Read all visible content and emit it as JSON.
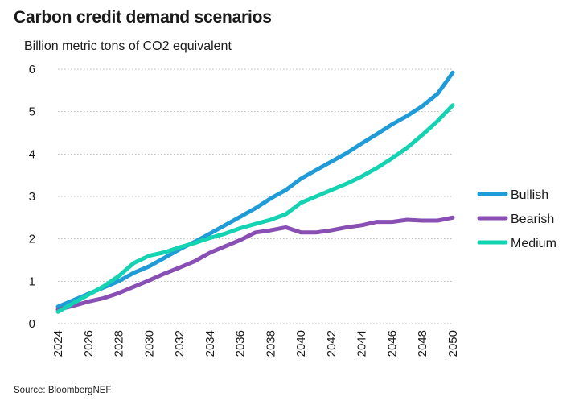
{
  "title": "Carbon credit demand scenarios",
  "subtitle": "Billion metric tons of CO2 equivalent",
  "source": "Source: BloombergNEF",
  "chart_data": {
    "type": "line",
    "title": "Carbon credit demand scenarios",
    "ylabel": "Billion metric tons of CO2 equivalent",
    "xlabel": "",
    "ylim": [
      0,
      6
    ],
    "xlim": [
      2024,
      2050
    ],
    "y_ticks": [
      0,
      1,
      2,
      3,
      4,
      5,
      6
    ],
    "x_ticks": [
      2024,
      2026,
      2028,
      2030,
      2032,
      2034,
      2036,
      2038,
      2040,
      2042,
      2044,
      2046,
      2048,
      2050
    ],
    "grid": "horizontal dotted",
    "legend_position": "right",
    "x": [
      2024,
      2025,
      2026,
      2027,
      2028,
      2029,
      2030,
      2031,
      2032,
      2033,
      2034,
      2035,
      2036,
      2037,
      2038,
      2039,
      2040,
      2041,
      2042,
      2043,
      2044,
      2045,
      2046,
      2047,
      2048,
      2049,
      2050
    ],
    "series": [
      {
        "name": "Bullish",
        "color": "#1f9bd7",
        "values": [
          0.4,
          0.55,
          0.7,
          0.85,
          1.0,
          1.2,
          1.35,
          1.55,
          1.75,
          1.93,
          2.12,
          2.32,
          2.52,
          2.72,
          2.95,
          3.15,
          3.42,
          3.62,
          3.82,
          4.02,
          4.25,
          4.47,
          4.7,
          4.9,
          5.13,
          5.42,
          5.92
        ]
      },
      {
        "name": "Bearish",
        "color": "#8a4fb5",
        "values": [
          0.33,
          0.42,
          0.52,
          0.6,
          0.72,
          0.87,
          1.02,
          1.18,
          1.32,
          1.47,
          1.67,
          1.82,
          1.97,
          2.15,
          2.2,
          2.27,
          2.15,
          2.15,
          2.2,
          2.27,
          2.32,
          2.4,
          2.4,
          2.45,
          2.43,
          2.43,
          2.5
        ]
      },
      {
        "name": "Medium",
        "color": "#14d3b2",
        "values": [
          0.28,
          0.48,
          0.68,
          0.88,
          1.12,
          1.43,
          1.6,
          1.68,
          1.8,
          1.9,
          2.02,
          2.12,
          2.25,
          2.35,
          2.45,
          2.58,
          2.85,
          3.0,
          3.15,
          3.3,
          3.47,
          3.67,
          3.9,
          4.15,
          4.45,
          4.78,
          5.15
        ]
      }
    ]
  }
}
